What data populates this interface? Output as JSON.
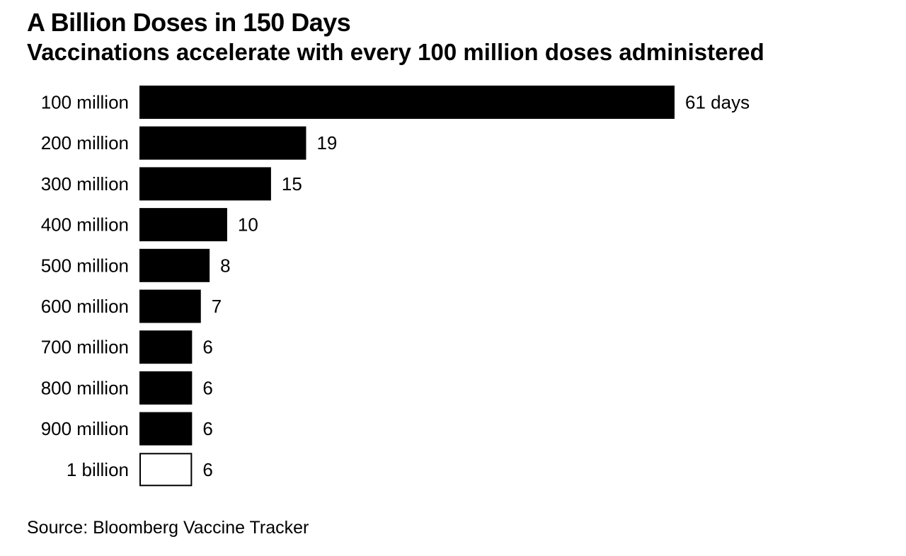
{
  "header": {
    "title": "A Billion Doses in 150 Days",
    "subtitle": "Vaccinations accelerate with every 100 million doses administered"
  },
  "footer": {
    "source": "Source: Bloomberg Vaccine Tracker"
  },
  "chart_data": {
    "type": "bar",
    "orientation": "horizontal",
    "title": "A Billion Doses in 150 Days",
    "subtitle": "Vaccinations accelerate with every 100 million doses administered",
    "xlabel": "",
    "ylabel": "",
    "categories": [
      "100 million",
      "200 million",
      "300 million",
      "400 million",
      "500 million",
      "600 million",
      "700 million",
      "800 million",
      "900 million",
      "1 billion"
    ],
    "values": [
      61,
      19,
      15,
      10,
      8,
      7,
      6,
      6,
      6,
      6
    ],
    "value_labels": [
      "61 days",
      "19",
      "15",
      "10",
      "8",
      "7",
      "6",
      "6",
      "6",
      "6"
    ],
    "projected": [
      false,
      false,
      false,
      false,
      false,
      false,
      false,
      false,
      false,
      true
    ],
    "colors": {
      "bar": "#000000",
      "projected_fill": "#ffffff",
      "projected_stroke": "#000000",
      "text": "#000000"
    },
    "xlim": [
      0,
      61
    ],
    "grid": false,
    "legend": "none"
  }
}
